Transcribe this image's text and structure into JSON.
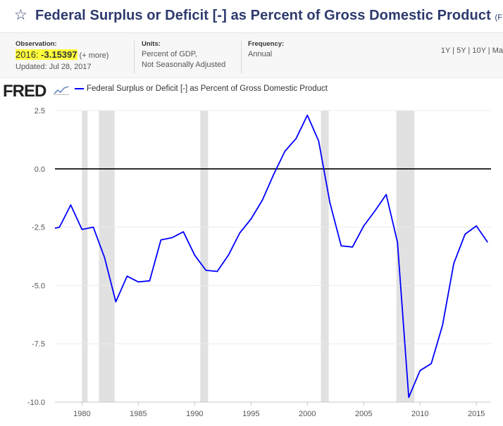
{
  "header": {
    "star_icon": "star-icon",
    "title": "Federal Surplus or Deficit [-] as Percent of Gross Domestic Product",
    "title_suffix": "(F"
  },
  "meta": {
    "observation_label": "Observation:",
    "observation_date": "2016:",
    "observation_value": "-3.15397",
    "observation_more": "(+ more)",
    "updated": "Updated: Jul 28, 2017",
    "units_label": "Units:",
    "units_line1": "Percent of GDP,",
    "units_line2": "Not Seasonally Adjusted",
    "frequency_label": "Frequency:",
    "frequency_value": "Annual",
    "ranges": [
      "1Y",
      "5Y",
      "10Y",
      "Ma"
    ]
  },
  "logo": {
    "text": "FRED"
  },
  "colors": {
    "series": "#0000ff",
    "recession": "#e1e1e1",
    "title": "#2d3a6e",
    "highlight": "#ffff3b"
  },
  "chart_data": {
    "type": "line",
    "title": "",
    "xlabel": "",
    "ylabel": "",
    "xlim": [
      1977.6,
      2016.3
    ],
    "ylim": [
      -10.0,
      2.5
    ],
    "y_ticks": [
      2.5,
      0.0,
      -2.5,
      -5.0,
      -7.5,
      -10.0
    ],
    "y_tick_labels": [
      "2.5",
      "0.0",
      "-2.5",
      "-5.0",
      "-7.5",
      "-10.0"
    ],
    "x_ticks": [
      1980,
      1985,
      1990,
      1995,
      2000,
      2005,
      2010,
      2015
    ],
    "x_tick_labels": [
      "1980",
      "1985",
      "1990",
      "1995",
      "2000",
      "2005",
      "2010",
      "2015"
    ],
    "zero_line": true,
    "recessions": [
      [
        1980.0,
        1980.5
      ],
      [
        1981.5,
        1982.9
      ],
      [
        1990.5,
        1991.2
      ],
      [
        2001.2,
        2001.9
      ],
      [
        2007.9,
        2009.5
      ]
    ],
    "legend_position": "top-left",
    "series": [
      {
        "name": "Federal Surplus or Deficit [-] as Percent of Gross Domestic Product",
        "x": [
          1977.6,
          1978,
          1979,
          1980,
          1981,
          1982,
          1983,
          1984,
          1985,
          1986,
          1987,
          1988,
          1989,
          1990,
          1991,
          1992,
          1993,
          1994,
          1995,
          1996,
          1997,
          1998,
          1999,
          2000,
          2001,
          2002,
          2003,
          2004,
          2005,
          2006,
          2007,
          2008,
          2009,
          2010,
          2011,
          2012,
          2013,
          2014,
          2015,
          2016
        ],
        "y": [
          -2.55,
          -2.5,
          -1.55,
          -2.6,
          -2.5,
          -3.8,
          -5.7,
          -4.6,
          -4.85,
          -4.8,
          -3.05,
          -2.95,
          -2.7,
          -3.7,
          -4.35,
          -4.4,
          -3.7,
          -2.75,
          -2.15,
          -1.35,
          -0.25,
          0.75,
          1.3,
          2.3,
          1.2,
          -1.45,
          -3.3,
          -3.35,
          -2.45,
          -1.8,
          -1.1,
          -3.15,
          -9.8,
          -8.65,
          -8.35,
          -6.7,
          -4.05,
          -2.8,
          -2.45,
          -3.15
        ]
      }
    ]
  }
}
